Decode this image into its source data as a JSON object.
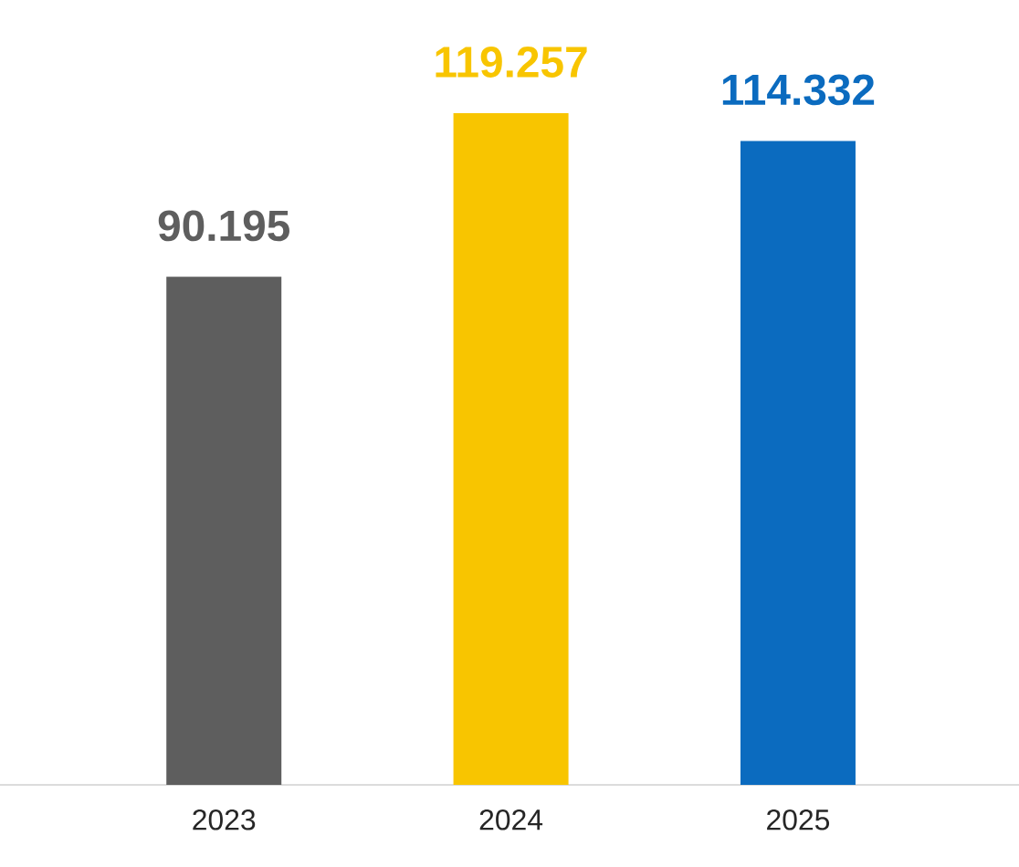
{
  "chart_data": {
    "type": "bar",
    "categories": [
      "2023",
      "2024",
      "2025"
    ],
    "values": [
      90.195,
      119.257,
      114.332
    ],
    "colors": [
      "#5e5e5e",
      "#f8c500",
      "#0b6bbf"
    ],
    "value_labels": [
      "90.195",
      "119.257",
      "114.332"
    ]
  }
}
